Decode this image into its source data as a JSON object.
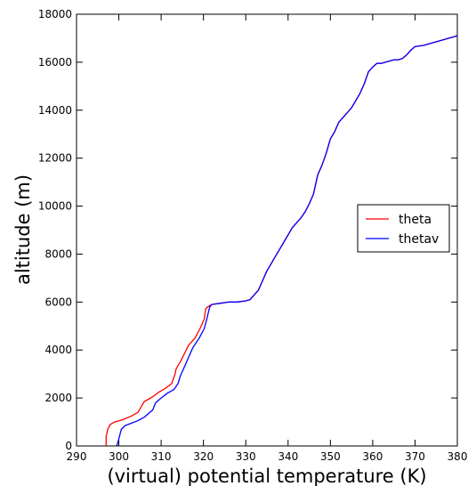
{
  "chart_data": {
    "type": "line",
    "title": "",
    "xlabel": "(virtual) potential temperature (K)",
    "ylabel": "altitude (m)",
    "xlim": [
      290,
      380
    ],
    "ylim": [
      0,
      18000
    ],
    "xticks": [
      290,
      300,
      310,
      320,
      330,
      340,
      350,
      360,
      370,
      380
    ],
    "yticks": [
      0,
      2000,
      4000,
      6000,
      8000,
      10000,
      12000,
      14000,
      16000,
      18000
    ],
    "grid": false,
    "legend_position": "center-right",
    "series": [
      {
        "name": "theta",
        "color": "#ff0000",
        "x": [
          297,
          297,
          297.4,
          298,
          299,
          301,
          303,
          304.5,
          305.5,
          306,
          307,
          308,
          309.5,
          311,
          312.5,
          313.3,
          313.5,
          314.5,
          315.5,
          316.5,
          318,
          319.2,
          320.2,
          320.5,
          321,
          322,
          324,
          326,
          328,
          330,
          331,
          332,
          333,
          334,
          335,
          336,
          337,
          338,
          339,
          340,
          341,
          342,
          343,
          344,
          345,
          346,
          346.5,
          347,
          348,
          349,
          350,
          351,
          352,
          353,
          354,
          355,
          356,
          357,
          358,
          359,
          360,
          361,
          362,
          363,
          364,
          365,
          366,
          367,
          368,
          369,
          370,
          372,
          374,
          376,
          378,
          380
        ],
        "y": [
          0,
          400,
          700,
          900,
          1000,
          1100,
          1250,
          1400,
          1700,
          1850,
          1950,
          2050,
          2250,
          2400,
          2600,
          3000,
          3200,
          3500,
          3850,
          4200,
          4500,
          4900,
          5300,
          5700,
          5800,
          5900,
          5950,
          6000,
          6000,
          6050,
          6100,
          6300,
          6500,
          6900,
          7300,
          7600,
          7900,
          8200,
          8500,
          8800,
          9100,
          9300,
          9500,
          9750,
          10100,
          10500,
          10900,
          11300,
          11700,
          12200,
          12800,
          13100,
          13500,
          13700,
          13900,
          14100,
          14400,
          14700,
          15100,
          15600,
          15800,
          15950,
          15950,
          16000,
          16050,
          16100,
          16100,
          16150,
          16300,
          16500,
          16650,
          16700,
          16800,
          16900,
          17000,
          17100
        ]
      },
      {
        "name": "thetav",
        "color": "#0000ff",
        "x": [
          299.5,
          300,
          300.6,
          301.5,
          303,
          304.5,
          306,
          307,
          308,
          308.7,
          310,
          311.5,
          313,
          314,
          314.5,
          315.5,
          316.5,
          317.5,
          319,
          320.2,
          320.8,
          321.2,
          321.5,
          322,
          324,
          326,
          328,
          330,
          331,
          332,
          333,
          334,
          335,
          336,
          337,
          338,
          339,
          340,
          341,
          342,
          343,
          344,
          345,
          346,
          346.5,
          347,
          348,
          349,
          350,
          351,
          352,
          353,
          354,
          355,
          356,
          357,
          358,
          359,
          360,
          361,
          362,
          363,
          364,
          365,
          366,
          367,
          368,
          369,
          370,
          372,
          374,
          376,
          378,
          380
        ],
        "y": [
          0,
          300,
          700,
          850,
          950,
          1050,
          1200,
          1350,
          1500,
          1800,
          2000,
          2200,
          2350,
          2600,
          2900,
          3300,
          3700,
          4100,
          4500,
          4900,
          5300,
          5600,
          5800,
          5900,
          5950,
          6000,
          6000,
          6050,
          6100,
          6300,
          6500,
          6900,
          7300,
          7600,
          7900,
          8200,
          8500,
          8800,
          9100,
          9300,
          9500,
          9750,
          10100,
          10500,
          10900,
          11300,
          11700,
          12200,
          12800,
          13100,
          13500,
          13700,
          13900,
          14100,
          14400,
          14700,
          15100,
          15600,
          15800,
          15950,
          15950,
          16000,
          16050,
          16100,
          16100,
          16150,
          16300,
          16500,
          16650,
          16700,
          16800,
          16900,
          17000,
          17100
        ]
      }
    ]
  }
}
